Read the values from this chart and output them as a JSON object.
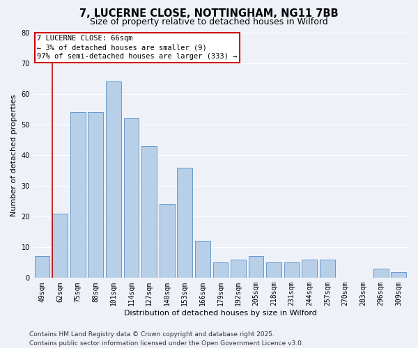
{
  "title": "7, LUCERNE CLOSE, NOTTINGHAM, NG11 7BB",
  "subtitle": "Size of property relative to detached houses in Wilford",
  "xlabel": "Distribution of detached houses by size in Wilford",
  "ylabel": "Number of detached properties",
  "categories": [
    "49sqm",
    "62sqm",
    "75sqm",
    "88sqm",
    "101sqm",
    "114sqm",
    "127sqm",
    "140sqm",
    "153sqm",
    "166sqm",
    "179sqm",
    "192sqm",
    "205sqm",
    "218sqm",
    "231sqm",
    "244sqm",
    "257sqm",
    "270sqm",
    "283sqm",
    "296sqm",
    "309sqm"
  ],
  "values": [
    7,
    21,
    54,
    54,
    64,
    52,
    43,
    24,
    36,
    12,
    5,
    6,
    7,
    5,
    5,
    6,
    6,
    0,
    0,
    3,
    2
  ],
  "bar_color": "#b8cfe8",
  "bar_edge_color": "#6699cc",
  "vline_color": "#cc0000",
  "annotation_box_text": "7 LUCERNE CLOSE: 66sqm\n← 3% of detached houses are smaller (9)\n97% of semi-detached houses are larger (333) →",
  "annotation_box_color": "#cc0000",
  "ylim": [
    0,
    80
  ],
  "yticks": [
    0,
    10,
    20,
    30,
    40,
    50,
    60,
    70,
    80
  ],
  "background_color": "#eef2f8",
  "grid_color": "#ffffff",
  "footer_line1": "Contains HM Land Registry data © Crown copyright and database right 2025.",
  "footer_line2": "Contains public sector information licensed under the Open Government Licence v3.0.",
  "title_fontsize": 10.5,
  "subtitle_fontsize": 9,
  "axis_label_fontsize": 8,
  "tick_fontsize": 7,
  "annotation_fontsize": 7.5,
  "footer_fontsize": 6.5
}
